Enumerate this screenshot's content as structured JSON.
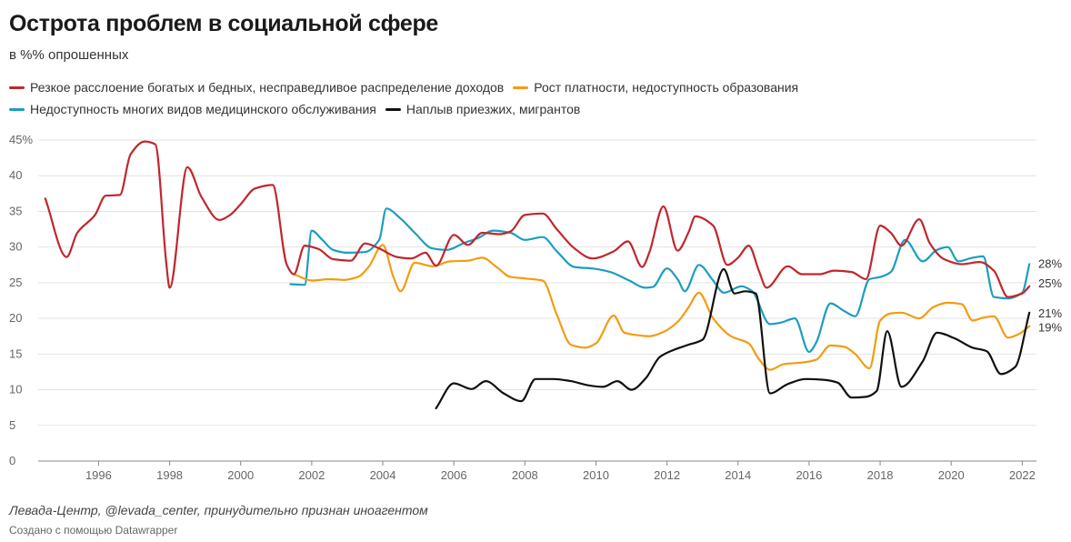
{
  "header": {
    "title": "Острота проблем в социальной сфере",
    "subtitle": "в %% опрошенных"
  },
  "footer": {
    "source": "Левада-Центр, @levada_center, принудительно признан иноагентом",
    "credit": "Создано с помощью Datawrapper"
  },
  "chart_data": {
    "type": "line",
    "xlim": [
      1994.3,
      2022.4
    ],
    "ylim": [
      0,
      45
    ],
    "grid": true,
    "legend_position": "top-left",
    "x_ticks": [
      {
        "value": 1996,
        "label": "1996"
      },
      {
        "value": 1998,
        "label": "1998"
      },
      {
        "value": 2000,
        "label": "2000"
      },
      {
        "value": 2002,
        "label": "2002"
      },
      {
        "value": 2004,
        "label": "2004"
      },
      {
        "value": 2006,
        "label": "2006"
      },
      {
        "value": 2008,
        "label": "2008"
      },
      {
        "value": 2010,
        "label": "2010"
      },
      {
        "value": 2012,
        "label": "2012"
      },
      {
        "value": 2014,
        "label": "2014"
      },
      {
        "value": 2016,
        "label": "2016"
      },
      {
        "value": 2018,
        "label": "2018"
      },
      {
        "value": 2020,
        "label": "2020"
      },
      {
        "value": 2022,
        "label": "2022"
      }
    ],
    "y_ticks": [
      {
        "value": 45,
        "label": "45%"
      },
      {
        "value": 40,
        "label": "40"
      },
      {
        "value": 35,
        "label": "35"
      },
      {
        "value": 30,
        "label": "30"
      },
      {
        "value": 25,
        "label": "25"
      },
      {
        "value": 20,
        "label": "20"
      },
      {
        "value": 15,
        "label": "15"
      },
      {
        "value": 10,
        "label": "10"
      },
      {
        "value": 5,
        "label": "5"
      },
      {
        "value": 0,
        "label": "0"
      }
    ],
    "series": [
      {
        "name": "Резкое расслоение богатых и бедных, несправедливое распределение доходов",
        "color": "#c0272d",
        "end_label": "25%",
        "end_label_value": 25.0,
        "points": [
          [
            1994.5,
            36.8
          ],
          [
            1995.1,
            28.6
          ],
          [
            1995.4,
            32.0
          ],
          [
            1995.9,
            34.5
          ],
          [
            1996.2,
            37.2
          ],
          [
            1996.6,
            37.3
          ],
          [
            1996.9,
            43.0
          ],
          [
            1997.3,
            44.8
          ],
          [
            1997.6,
            44.4
          ],
          [
            1997.9,
            28.0
          ],
          [
            1998.0,
            24.3
          ],
          [
            1998.5,
            41.2
          ],
          [
            1998.9,
            37.0
          ],
          [
            1999.4,
            33.8
          ],
          [
            1999.7,
            34.5
          ],
          [
            2000.0,
            36.0
          ],
          [
            2000.4,
            38.2
          ],
          [
            2000.9,
            38.7
          ],
          [
            2001.3,
            27.5
          ],
          [
            2001.5,
            26.2
          ],
          [
            2001.8,
            30.2
          ],
          [
            2002.2,
            29.7
          ],
          [
            2002.6,
            28.3
          ],
          [
            2003.1,
            28.1
          ],
          [
            2003.5,
            30.5
          ],
          [
            2003.9,
            29.8
          ],
          [
            2004.4,
            28.6
          ],
          [
            2004.8,
            28.4
          ],
          [
            2005.2,
            29.2
          ],
          [
            2005.5,
            27.4
          ],
          [
            2006.0,
            31.7
          ],
          [
            2006.4,
            30.3
          ],
          [
            2006.8,
            32.0
          ],
          [
            2007.3,
            31.8
          ],
          [
            2007.6,
            32.2
          ],
          [
            2008.0,
            34.5
          ],
          [
            2008.5,
            34.7
          ],
          [
            2008.9,
            32.5
          ],
          [
            2009.4,
            29.8
          ],
          [
            2009.9,
            28.4
          ],
          [
            2010.5,
            29.4
          ],
          [
            2010.9,
            30.8
          ],
          [
            2011.3,
            27.2
          ],
          [
            2011.5,
            29.2
          ],
          [
            2011.9,
            35.7
          ],
          [
            2012.3,
            29.5
          ],
          [
            2012.6,
            32.0
          ],
          [
            2012.8,
            34.3
          ],
          [
            2013.3,
            33.0
          ],
          [
            2013.7,
            27.5
          ],
          [
            2014.0,
            28.5
          ],
          [
            2014.3,
            30.2
          ],
          [
            2014.6,
            26.5
          ],
          [
            2014.8,
            24.3
          ],
          [
            2015.4,
            27.3
          ],
          [
            2015.8,
            26.2
          ],
          [
            2016.3,
            26.2
          ],
          [
            2016.7,
            26.7
          ],
          [
            2017.2,
            26.5
          ],
          [
            2017.6,
            25.5
          ],
          [
            2018.0,
            33.0
          ],
          [
            2018.3,
            32.0
          ],
          [
            2018.6,
            30.2
          ],
          [
            2019.1,
            33.9
          ],
          [
            2019.4,
            30.5
          ],
          [
            2019.8,
            28.3
          ],
          [
            2020.3,
            27.6
          ],
          [
            2020.8,
            27.9
          ],
          [
            2021.2,
            26.7
          ],
          [
            2021.6,
            23.0
          ],
          [
            2022.0,
            23.5
          ],
          [
            2022.2,
            24.5
          ]
        ]
      },
      {
        "name": "Рост платности, недоступность образования",
        "color": "#f39c12",
        "end_label": "19%",
        "end_label_value": 18.8,
        "points": [
          [
            2001.5,
            26.2
          ],
          [
            2002.0,
            25.3
          ],
          [
            2002.5,
            25.5
          ],
          [
            2002.9,
            25.4
          ],
          [
            2003.3,
            25.8
          ],
          [
            2003.6,
            27.2
          ],
          [
            2004.0,
            30.3
          ],
          [
            2004.3,
            25.8
          ],
          [
            2004.5,
            23.8
          ],
          [
            2004.9,
            27.8
          ],
          [
            2005.4,
            27.3
          ],
          [
            2005.9,
            28.0
          ],
          [
            2006.4,
            28.1
          ],
          [
            2006.8,
            28.5
          ],
          [
            2007.2,
            27.2
          ],
          [
            2007.6,
            25.8
          ],
          [
            2008.0,
            25.6
          ],
          [
            2008.5,
            25.3
          ],
          [
            2008.9,
            20.5
          ],
          [
            2009.3,
            16.3
          ],
          [
            2009.7,
            15.9
          ],
          [
            2010.0,
            16.5
          ],
          [
            2010.5,
            20.4
          ],
          [
            2010.8,
            18.0
          ],
          [
            2011.1,
            17.7
          ],
          [
            2011.5,
            17.5
          ],
          [
            2011.9,
            18.1
          ],
          [
            2012.3,
            19.5
          ],
          [
            2012.6,
            21.5
          ],
          [
            2012.9,
            23.6
          ],
          [
            2013.3,
            20.0
          ],
          [
            2013.8,
            17.5
          ],
          [
            2014.3,
            16.5
          ],
          [
            2014.6,
            14.2
          ],
          [
            2014.9,
            12.8
          ],
          [
            2015.3,
            13.6
          ],
          [
            2015.8,
            13.8
          ],
          [
            2016.2,
            14.2
          ],
          [
            2016.6,
            16.2
          ],
          [
            2017.0,
            16.0
          ],
          [
            2017.3,
            15.0
          ],
          [
            2017.7,
            13.0
          ],
          [
            2018.0,
            19.7
          ],
          [
            2018.3,
            20.7
          ],
          [
            2018.6,
            20.8
          ],
          [
            2019.1,
            20.0
          ],
          [
            2019.5,
            21.6
          ],
          [
            2019.9,
            22.2
          ],
          [
            2020.3,
            22.0
          ],
          [
            2020.6,
            19.7
          ],
          [
            2020.9,
            20.1
          ],
          [
            2021.2,
            20.3
          ],
          [
            2021.6,
            17.3
          ],
          [
            2021.9,
            17.8
          ],
          [
            2022.2,
            18.9
          ]
        ]
      },
      {
        "name": "Недоступность многих видов медицинского обслуживания",
        "color": "#1b9ec1",
        "end_label": "28%",
        "end_label_value": 27.7,
        "points": [
          [
            2001.4,
            24.8
          ],
          [
            2001.8,
            24.7
          ],
          [
            2002.0,
            32.3
          ],
          [
            2002.3,
            31.0
          ],
          [
            2002.6,
            29.6
          ],
          [
            2003.0,
            29.2
          ],
          [
            2003.5,
            29.3
          ],
          [
            2003.9,
            31.0
          ],
          [
            2004.1,
            35.4
          ],
          [
            2004.5,
            34.0
          ],
          [
            2004.9,
            32.0
          ],
          [
            2005.4,
            29.8
          ],
          [
            2005.8,
            29.6
          ],
          [
            2006.3,
            30.6
          ],
          [
            2006.7,
            31.3
          ],
          [
            2007.1,
            32.3
          ],
          [
            2007.6,
            32.0
          ],
          [
            2008.0,
            31.0
          ],
          [
            2008.5,
            31.4
          ],
          [
            2008.9,
            29.4
          ],
          [
            2009.4,
            27.2
          ],
          [
            2009.9,
            27.0
          ],
          [
            2010.4,
            26.5
          ],
          [
            2010.9,
            25.4
          ],
          [
            2011.4,
            24.3
          ],
          [
            2011.6,
            24.4
          ],
          [
            2012.0,
            27.0
          ],
          [
            2012.3,
            25.5
          ],
          [
            2012.5,
            23.8
          ],
          [
            2012.9,
            27.5
          ],
          [
            2013.3,
            25.3
          ],
          [
            2013.6,
            23.6
          ],
          [
            2014.1,
            24.5
          ],
          [
            2014.4,
            23.8
          ],
          [
            2014.9,
            19.2
          ],
          [
            2015.2,
            19.4
          ],
          [
            2015.6,
            20.0
          ],
          [
            2016.0,
            15.3
          ],
          [
            2016.2,
            16.6
          ],
          [
            2016.6,
            22.1
          ],
          [
            2017.0,
            21.0
          ],
          [
            2017.3,
            20.3
          ],
          [
            2017.7,
            25.5
          ],
          [
            2018.0,
            25.8
          ],
          [
            2018.3,
            26.5
          ],
          [
            2018.7,
            31.0
          ],
          [
            2019.2,
            28.0
          ],
          [
            2019.6,
            29.6
          ],
          [
            2019.9,
            30.0
          ],
          [
            2020.2,
            28.0
          ],
          [
            2020.6,
            28.5
          ],
          [
            2020.9,
            28.7
          ],
          [
            2021.2,
            23.0
          ],
          [
            2021.6,
            22.8
          ],
          [
            2022.0,
            23.6
          ],
          [
            2022.2,
            27.6
          ]
        ]
      },
      {
        "name": "Наплыв приезжих, мигрантов",
        "color": "#111111",
        "end_label": "21%",
        "end_label_value": 20.8,
        "points": [
          [
            2005.5,
            7.4
          ],
          [
            2006.0,
            10.9
          ],
          [
            2006.5,
            10.1
          ],
          [
            2006.9,
            11.2
          ],
          [
            2007.4,
            9.5
          ],
          [
            2007.9,
            8.4
          ],
          [
            2008.3,
            11.5
          ],
          [
            2008.8,
            11.5
          ],
          [
            2009.3,
            11.2
          ],
          [
            2009.8,
            10.6
          ],
          [
            2010.2,
            10.4
          ],
          [
            2010.6,
            11.2
          ],
          [
            2011.0,
            10.0
          ],
          [
            2011.4,
            11.6
          ],
          [
            2011.8,
            14.6
          ],
          [
            2012.2,
            15.6
          ],
          [
            2012.6,
            16.3
          ],
          [
            2013.0,
            17.0
          ],
          [
            2013.6,
            26.9
          ],
          [
            2013.9,
            23.5
          ],
          [
            2014.2,
            23.8
          ],
          [
            2014.5,
            23.5
          ],
          [
            2014.9,
            9.5
          ],
          [
            2015.4,
            10.8
          ],
          [
            2015.9,
            11.5
          ],
          [
            2016.4,
            11.4
          ],
          [
            2016.8,
            11.0
          ],
          [
            2017.2,
            8.9
          ],
          [
            2017.6,
            9.0
          ],
          [
            2017.9,
            9.8
          ],
          [
            2018.2,
            18.2
          ],
          [
            2018.6,
            10.4
          ],
          [
            2019.2,
            14.0
          ],
          [
            2019.6,
            18.0
          ],
          [
            2020.1,
            17.2
          ],
          [
            2020.6,
            15.9
          ],
          [
            2021.0,
            15.4
          ],
          [
            2021.4,
            12.2
          ],
          [
            2021.8,
            13.2
          ],
          [
            2022.2,
            20.8
          ]
        ]
      }
    ]
  }
}
